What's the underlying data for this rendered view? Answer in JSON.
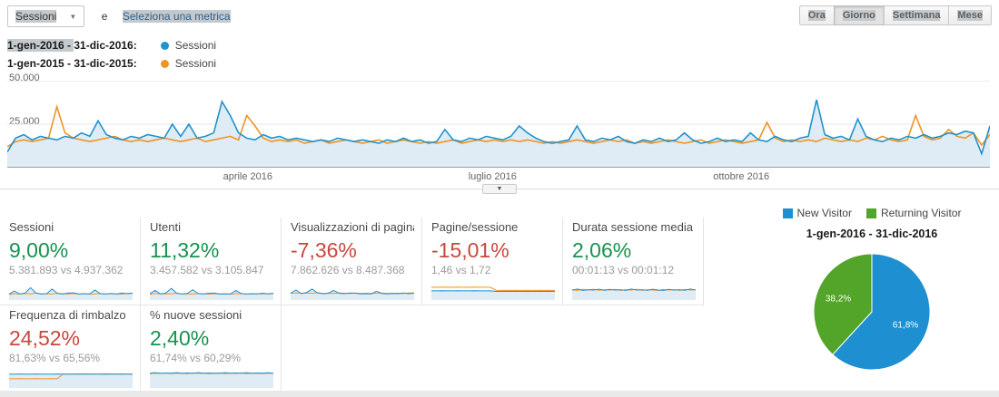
{
  "toolbar": {
    "metric_select": "Sessioni",
    "conjunction": "e",
    "add_metric_label": "Seleziona una metrica",
    "granularity": [
      "Ora",
      "Giorno",
      "Settimana",
      "Mese"
    ],
    "active_granularity": "Giorno"
  },
  "legend": [
    {
      "segments": [
        {
          "text": "1-gen-2016 - ",
          "selected": true
        },
        {
          "text": "31-dic-2016:",
          "selected": false
        }
      ],
      "series_label": "Sessioni",
      "color": "#1f93cc"
    },
    {
      "segments": [
        {
          "text": "1-gen-2015 - 31-dic-2015:",
          "selected": false
        }
      ],
      "series_label": "Sessioni",
      "color": "#ef9423"
    }
  ],
  "chart_data": [
    {
      "type": "line",
      "description": "Sessioni giornaliere: 1-gen-2016 - 31-dic-2016 (blu, con area) vs 1-gen-2015 - 31-dic-2015 (arancione)",
      "y_tick_labels": [
        "50.000",
        "25.000"
      ],
      "ylim_thousands": [
        0,
        50
      ],
      "x_tick_labels": [
        "aprile 2016",
        "luglio 2016",
        "ottobre 2016"
      ],
      "x_tick_pos_pct": [
        24.8,
        49.3,
        74.2
      ],
      "grid": true,
      "legend_position": "top-left",
      "series": [
        {
          "name": "1-gen-2016 - 31-dic-2016: Sessioni",
          "color": "#1f93cc",
          "area": true,
          "area_color": "#dfebf5",
          "values_thousands": [
            9,
            17,
            19,
            16,
            18,
            17,
            16,
            18,
            17,
            20,
            18,
            27,
            19,
            17,
            16,
            18,
            17,
            19,
            18,
            17,
            25,
            18,
            25,
            17,
            18,
            20,
            38,
            30,
            20,
            17,
            16,
            19,
            17,
            18,
            16,
            17,
            16,
            15,
            16,
            15,
            17,
            16,
            15,
            16,
            15,
            14,
            16,
            15,
            17,
            15,
            16,
            14,
            15,
            22,
            16,
            15,
            17,
            16,
            18,
            17,
            16,
            18,
            24,
            20,
            17,
            15,
            14,
            15,
            16,
            24,
            16,
            15,
            17,
            16,
            18,
            15,
            14,
            16,
            15,
            17,
            15,
            16,
            20,
            16,
            14,
            15,
            17,
            15,
            16,
            15,
            20,
            16,
            15,
            18,
            16,
            15,
            17,
            18,
            39,
            19,
            17,
            18,
            16,
            28,
            18,
            16,
            15,
            17,
            16,
            18,
            17,
            19,
            17,
            18,
            20,
            19,
            21,
            20,
            8,
            24
          ]
        },
        {
          "name": "1-gen-2015 - 31-dic-2015: Sessioni",
          "color": "#ef9423",
          "area": false,
          "values_thousands": [
            12,
            15,
            16,
            15,
            16,
            17,
            35,
            20,
            17,
            16,
            15,
            16,
            17,
            18,
            16,
            15,
            16,
            15,
            16,
            17,
            16,
            15,
            16,
            17,
            15,
            16,
            17,
            18,
            16,
            30,
            24,
            17,
            15,
            16,
            15,
            16,
            14,
            15,
            16,
            14,
            15,
            16,
            15,
            14,
            15,
            16,
            14,
            15,
            16,
            15,
            14,
            15,
            14,
            15,
            16,
            14,
            15,
            16,
            15,
            16,
            15,
            16,
            15,
            16,
            15,
            14,
            15,
            14,
            15,
            16,
            15,
            14,
            15,
            16,
            15,
            16,
            14,
            15,
            14,
            15,
            16,
            15,
            14,
            15,
            16,
            14,
            15,
            16,
            15,
            14,
            15,
            16,
            26,
            17,
            15,
            16,
            15,
            16,
            15,
            17,
            16,
            15,
            16,
            15,
            17,
            16,
            18,
            16,
            15,
            16,
            30,
            18,
            16,
            17,
            22,
            18,
            17,
            20,
            13,
            19
          ]
        }
      ]
    },
    {
      "type": "pie",
      "title": "1-gen-2016 - 31-dic-2016",
      "legend_position": "top",
      "slices": [
        {
          "label": "New Visitor",
          "value": 61.8,
          "display": "61,8%",
          "color": "#1e8fd0"
        },
        {
          "label": "Returning Visitor",
          "value": 38.2,
          "display": "38,2%",
          "color": "#52a528"
        }
      ]
    }
  ],
  "cards": [
    {
      "title": "Sessioni",
      "delta": "9,00%",
      "direction": "good",
      "comparison": "5.381.893 vs 4.937.362",
      "spark": {
        "b": [
          0.3,
          0.45,
          0.3,
          0.35,
          0.62,
          0.35,
          0.3,
          0.32,
          0.55,
          0.33,
          0.3,
          0.35,
          0.36,
          0.3,
          0.32,
          0.3,
          0.5,
          0.32,
          0.3,
          0.33,
          0.3,
          0.35,
          0.32,
          0.34
        ],
        "o": [
          0.28,
          0.32,
          0.3,
          0.33,
          0.3,
          0.35,
          0.3,
          0.32,
          0.3,
          0.34,
          0.32,
          0.3,
          0.33,
          0.3,
          0.32,
          0.3,
          0.31,
          0.33,
          0.3,
          0.32,
          0.31,
          0.3,
          0.33,
          0.35
        ]
      }
    },
    {
      "title": "Utenti",
      "delta": "11,32%",
      "direction": "good",
      "comparison": "3.457.582 vs 3.105.847",
      "spark": {
        "b": [
          0.32,
          0.48,
          0.3,
          0.36,
          0.58,
          0.34,
          0.3,
          0.33,
          0.52,
          0.32,
          0.31,
          0.34,
          0.35,
          0.3,
          0.31,
          0.3,
          0.48,
          0.33,
          0.3,
          0.32,
          0.31,
          0.34,
          0.31,
          0.33
        ],
        "o": [
          0.29,
          0.33,
          0.31,
          0.32,
          0.31,
          0.34,
          0.3,
          0.31,
          0.3,
          0.33,
          0.31,
          0.3,
          0.32,
          0.31,
          0.31,
          0.3,
          0.32,
          0.32,
          0.3,
          0.31,
          0.32,
          0.31,
          0.32,
          0.34
        ]
      }
    },
    {
      "title": "Visualizzazioni di pagina",
      "delta": "-7,36%",
      "direction": "bad",
      "comparison": "7.862.626 vs 8.487.368",
      "spark": {
        "b": [
          0.34,
          0.5,
          0.32,
          0.38,
          0.55,
          0.36,
          0.32,
          0.34,
          0.48,
          0.34,
          0.32,
          0.35,
          0.34,
          0.31,
          0.32,
          0.31,
          0.44,
          0.33,
          0.31,
          0.33,
          0.32,
          0.35,
          0.32,
          0.34
        ],
        "o": [
          0.33,
          0.36,
          0.34,
          0.35,
          0.34,
          0.37,
          0.33,
          0.34,
          0.33,
          0.36,
          0.34,
          0.33,
          0.35,
          0.33,
          0.34,
          0.33,
          0.34,
          0.35,
          0.33,
          0.34,
          0.34,
          0.33,
          0.35,
          0.36
        ]
      }
    },
    {
      "title": "Pagine/sessione",
      "delta": "-15,01%",
      "direction": "bad",
      "comparison": "1,46 vs 1,72",
      "spark": {
        "b": [
          0.46,
          0.46,
          0.47,
          0.46,
          0.46,
          0.47,
          0.46,
          0.46,
          0.47,
          0.46,
          0.46,
          0.46,
          0.43,
          0.43,
          0.43,
          0.43,
          0.43,
          0.43,
          0.43,
          0.43,
          0.43,
          0.43,
          0.43,
          0.43
        ],
        "o": [
          0.64,
          0.64,
          0.65,
          0.64,
          0.64,
          0.65,
          0.64,
          0.64,
          0.65,
          0.64,
          0.64,
          0.64,
          0.49,
          0.48,
          0.49,
          0.48,
          0.49,
          0.48,
          0.49,
          0.48,
          0.49,
          0.48,
          0.49,
          0.48
        ]
      }
    },
    {
      "title": "Durata sessione media",
      "delta": "2,06%",
      "direction": "good",
      "comparison": "00:01:13 vs 00:01:12",
      "spark": {
        "b": [
          0.5,
          0.55,
          0.48,
          0.52,
          0.5,
          0.54,
          0.49,
          0.53,
          0.5,
          0.52,
          0.48,
          0.55,
          0.5,
          0.52,
          0.49,
          0.54,
          0.5,
          0.48,
          0.53,
          0.5,
          0.52,
          0.49,
          0.55,
          0.5
        ],
        "o": [
          0.52,
          0.48,
          0.53,
          0.5,
          0.54,
          0.49,
          0.52,
          0.5,
          0.53,
          0.48,
          0.52,
          0.5,
          0.54,
          0.49,
          0.52,
          0.5,
          0.48,
          0.53,
          0.5,
          0.52,
          0.48,
          0.53,
          0.5,
          0.52
        ]
      }
    },
    {
      "title": "Frequenza di rimbalzo",
      "delta": "24,52%",
      "direction": "bad",
      "comparison": "81,63% vs 65,56%",
      "spark": {
        "b": [
          0.69,
          0.69,
          0.7,
          0.69,
          0.69,
          0.7,
          0.69,
          0.69,
          0.69,
          0.7,
          0.69,
          0.69,
          0.69,
          0.69,
          0.7,
          0.69,
          0.69,
          0.69,
          0.7,
          0.69,
          0.69,
          0.69,
          0.69,
          0.69
        ],
        "o": [
          0.46,
          0.46,
          0.47,
          0.46,
          0.46,
          0.47,
          0.46,
          0.46,
          0.47,
          0.46,
          0.69,
          0.69,
          0.69,
          0.7,
          0.69,
          0.69,
          0.69,
          0.69,
          0.7,
          0.69,
          0.69,
          0.7,
          0.69,
          0.68
        ]
      }
    },
    {
      "title": "% nuove sessioni",
      "delta": "2,40%",
      "direction": "good",
      "comparison": "61,74% vs 60,29%",
      "spark": {
        "b": [
          0.74,
          0.77,
          0.73,
          0.75,
          0.74,
          0.77,
          0.74,
          0.75,
          0.73,
          0.77,
          0.74,
          0.75,
          0.74,
          0.73,
          0.77,
          0.74,
          0.75,
          0.74,
          0.77,
          0.73,
          0.75,
          0.74,
          0.76,
          0.74
        ],
        "o": [
          0.72,
          0.74,
          0.73,
          0.75,
          0.72,
          0.74,
          0.73,
          0.72,
          0.75,
          0.73,
          0.74,
          0.72,
          0.73,
          0.75,
          0.72,
          0.74,
          0.73,
          0.75,
          0.72,
          0.74,
          0.73,
          0.72,
          0.74,
          0.73
        ]
      }
    }
  ],
  "colors": {
    "series_2016": "#1f93cc",
    "series_2015": "#ef9423",
    "area_fill": "#dfebf5",
    "positive": "#16934e",
    "negative": "#c9473d",
    "pie_blue": "#1e8fd0",
    "pie_green": "#52a528"
  }
}
